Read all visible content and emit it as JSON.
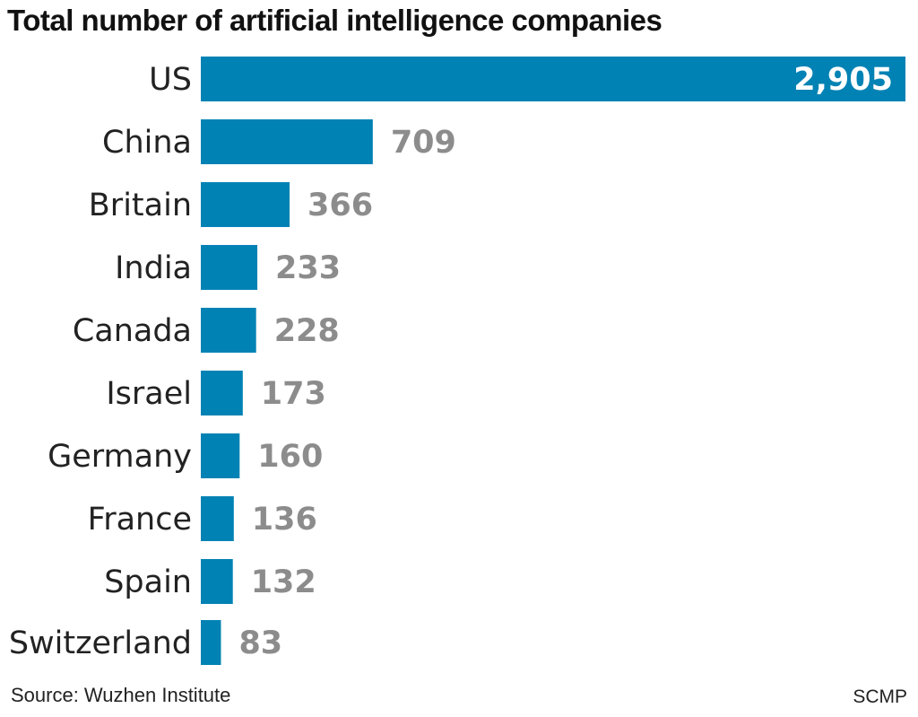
{
  "chart_data": {
    "type": "bar",
    "orientation": "horizontal",
    "title": "Total number of artificial intelligence companies",
    "categories": [
      "US",
      "China",
      "Britain",
      "India",
      "Canada",
      "Israel",
      "Germany",
      "France",
      "Spain",
      "Switzerland"
    ],
    "values": [
      2905,
      709,
      366,
      233,
      228,
      173,
      160,
      136,
      132,
      83
    ],
    "value_labels": [
      "2,905",
      "709",
      "366",
      "233",
      "228",
      "173",
      "160",
      "136",
      "132",
      "83"
    ],
    "xlim": [
      0,
      2905
    ],
    "grid": false,
    "bar_color": "#0082b4",
    "value_label_color": "#8c8c8c",
    "source": "Source: Wuzhen Institute",
    "credit": "SCMP"
  }
}
